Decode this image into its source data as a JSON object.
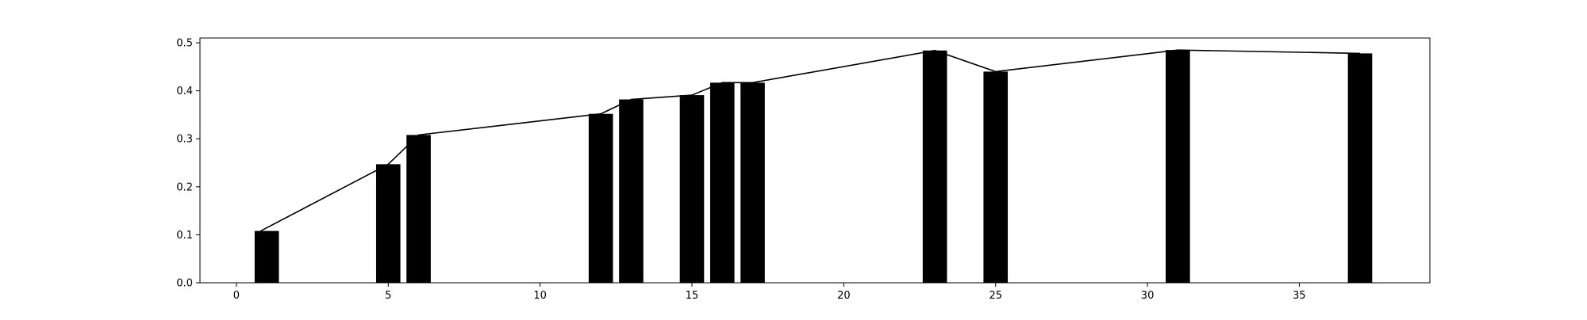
{
  "chart_data": {
    "type": "bar",
    "title": "",
    "xlabel": "",
    "ylabel": "",
    "xlim": [
      -1.2,
      39.3
    ],
    "ylim": [
      0,
      0.51
    ],
    "grid": false,
    "legend": "none",
    "bar_width": 0.8,
    "colors": {
      "bar": "#000000",
      "line": "#000000",
      "axes": "#000000",
      "background": "#ffffff"
    },
    "x": [
      1,
      5,
      6,
      12,
      13,
      15,
      16,
      17,
      23,
      25,
      31,
      37
    ],
    "values": [
      0.108,
      0.247,
      0.308,
      0.352,
      0.382,
      0.391,
      0.417,
      0.417,
      0.484,
      0.44,
      0.485,
      0.478
    ],
    "line": {
      "x": [
        0.8,
        5,
        6,
        12,
        13,
        15,
        16,
        17,
        23,
        25,
        31,
        37
      ],
      "y": [
        0.108,
        0.247,
        0.308,
        0.352,
        0.382,
        0.391,
        0.417,
        0.417,
        0.484,
        0.44,
        0.485,
        0.478
      ]
    },
    "xticks": [
      0,
      5,
      10,
      15,
      20,
      25,
      30,
      35
    ],
    "xtick_labels": [
      "0",
      "5",
      "10",
      "15",
      "20",
      "25",
      "30",
      "35"
    ],
    "yticks": [
      0.0,
      0.1,
      0.2,
      0.3,
      0.4,
      0.5
    ],
    "ytick_labels": [
      "0.0",
      "0.1",
      "0.2",
      "0.3",
      "0.4",
      "0.5"
    ]
  }
}
